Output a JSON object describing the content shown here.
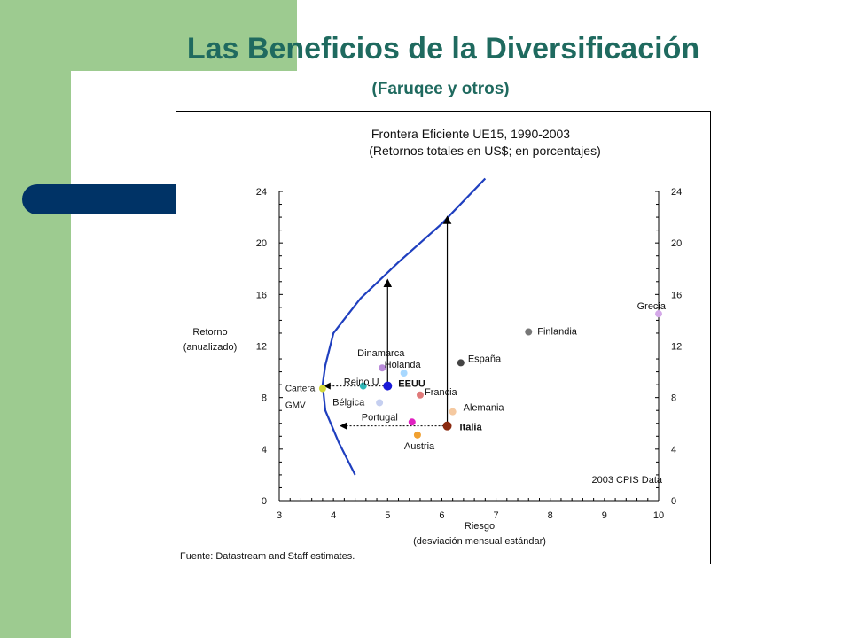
{
  "slide": {
    "title": "Las Beneficios de la Diversificación",
    "subtitle": "(Faruqee y otros)"
  },
  "colors": {
    "band": "#9dcb90",
    "navy": "#003366",
    "title": "#1f6a5f",
    "frontier": "#1f3fbf"
  },
  "chart_data": {
    "type": "scatter",
    "title": "Frontera Eficiente UE15, 1990-2003",
    "subtitle": "(Retornos totales en US$; en porcentajes)",
    "xlabel": "Riesgo",
    "xlabel2": "(desviación mensual estándar)",
    "ylabel": "Retorno",
    "ylabel2": "(anualizado)",
    "xlim": [
      3,
      10
    ],
    "ylim": [
      0,
      24
    ],
    "x_ticks": [
      "3",
      "4",
      "5",
      "6",
      "7",
      "8",
      "9",
      "10"
    ],
    "y_ticks": [
      "0",
      "4",
      "8",
      "12",
      "16",
      "20",
      "24"
    ],
    "note": "2003 CPIS Data",
    "source": "Fuente: Datastream and Staff estimates.",
    "grid": false,
    "frontier": [
      [
        4.4,
        2.0
      ],
      [
        4.1,
        4.5
      ],
      [
        3.85,
        7.0
      ],
      [
        3.8,
        9.0
      ],
      [
        3.85,
        10.5
      ],
      [
        4.0,
        13.0
      ],
      [
        4.5,
        15.7
      ],
      [
        5.2,
        18.5
      ],
      [
        6.0,
        21.5
      ],
      [
        6.8,
        25.0
      ]
    ],
    "points": [
      {
        "label": "Dinamarca",
        "x": 4.9,
        "y": 10.3,
        "color": "#b98bd9",
        "bold": false
      },
      {
        "label": "Holanda",
        "x": 5.3,
        "y": 9.9,
        "color": "#a8d8ff",
        "bold": false
      },
      {
        "label": "EEUU",
        "x": 5.0,
        "y": 8.9,
        "color": "#1a1ad8",
        "bold": true
      },
      {
        "label": "Reino U",
        "x": 4.55,
        "y": 8.9,
        "color": "#2fb8b8",
        "bold": false
      },
      {
        "label": "Francia",
        "x": 5.6,
        "y": 8.2,
        "color": "#e07a7a",
        "bold": false
      },
      {
        "label": "Bélgica",
        "x": 4.85,
        "y": 7.6,
        "color": "#c5cff0",
        "bold": false
      },
      {
        "label": "Cartera GMV",
        "x": 3.8,
        "y": 8.7,
        "color": "#d2d83a",
        "bold": false
      },
      {
        "label": "Portugal",
        "x": 5.45,
        "y": 6.1,
        "color": "#e020c0",
        "bold": false
      },
      {
        "label": "Austria",
        "x": 5.55,
        "y": 5.1,
        "color": "#f0a030",
        "bold": false
      },
      {
        "label": "Italia",
        "x": 6.1,
        "y": 5.8,
        "color": "#8b2a10",
        "bold": true
      },
      {
        "label": "Alemania",
        "x": 6.2,
        "y": 6.9,
        "color": "#f5c9a0",
        "bold": false
      },
      {
        "label": "España",
        "x": 6.35,
        "y": 10.7,
        "color": "#444444",
        "bold": false
      },
      {
        "label": "Finlandia",
        "x": 7.6,
        "y": 13.1,
        "color": "#777777",
        "bold": false
      },
      {
        "label": "Grecia",
        "x": 10.0,
        "y": 14.5,
        "color": "#d4a8e8",
        "bold": false
      }
    ]
  }
}
